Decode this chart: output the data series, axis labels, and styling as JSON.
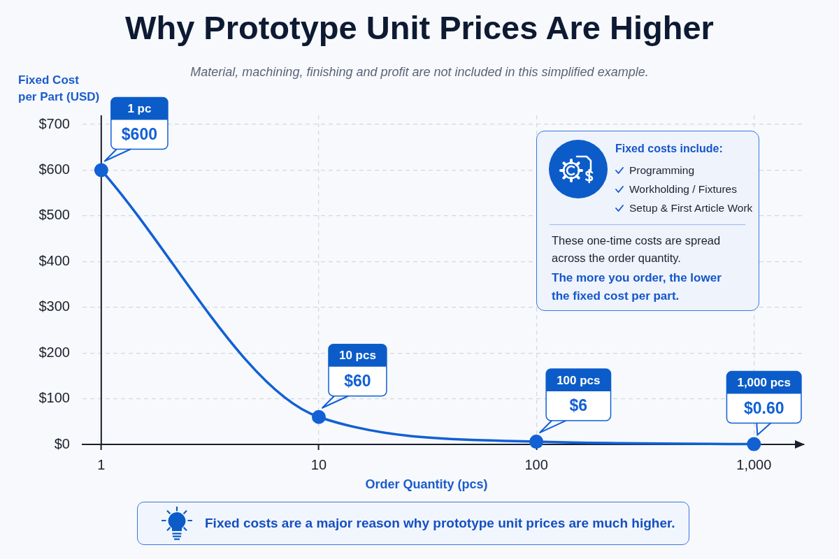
{
  "chart_data": {
    "type": "line",
    "title": "Why Prototype Unit Prices Are Higher",
    "subtitle": "Material, machining, finishing and profit are not included in this simplified example.",
    "xlabel": "Order Quantity (pcs)",
    "ylabel": "Fixed Cost per Part (USD)",
    "x": [
      1,
      10,
      100,
      1000
    ],
    "series": [
      {
        "color": "#1160d4",
        "values": [
          600,
          60,
          6,
          0.6
        ],
        "value_labels": [
          "$600",
          "$60",
          "$6",
          "$0.60"
        ]
      }
    ],
    "log": "x",
    "xlim": [
      0.82,
      1700
    ],
    "xticks": [
      1,
      10,
      100,
      {
        "value": 1000,
        "label": "1,000"
      }
    ],
    "ylim": [
      0,
      720
    ],
    "yticks": [
      {
        "value": 0,
        "label": "$0"
      },
      {
        "value": 100,
        "label": "$100"
      },
      {
        "value": 200,
        "label": "$200"
      },
      {
        "value": 300,
        "label": "$300"
      },
      {
        "value": 400,
        "label": "$400"
      },
      {
        "value": 500,
        "label": "$500"
      },
      {
        "value": 600,
        "label": "$600"
      },
      {
        "value": 700,
        "label": "$700"
      }
    ],
    "grid": true,
    "marker": "circle",
    "annotations": [
      "1 pc",
      "10 pcs",
      "100 pcs",
      "1,000 pcs",
      "Fixed costs include:",
      "Programming",
      "Workholding / Fixtures",
      "Setup & First Article Work",
      "These one-time costs are spread across the order quantity.",
      "The more you order, the lower the fixed cost per part.",
      "Fixed costs are a major reason why prototype unit prices are much higher."
    ]
  }
}
